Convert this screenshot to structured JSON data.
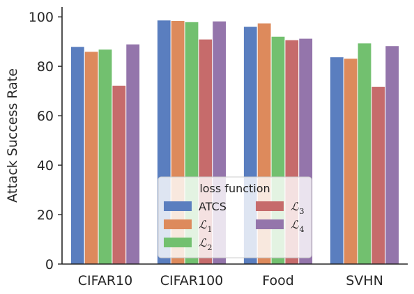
{
  "chart_data": {
    "type": "bar",
    "title": "",
    "xlabel": "",
    "ylabel": "Attack Success Rate",
    "ylim": [
      0,
      104
    ],
    "yticks": [
      0,
      20,
      40,
      60,
      80,
      100
    ],
    "categories": [
      "CIFAR10",
      "CIFAR100",
      "Food",
      "SVHN"
    ],
    "series": [
      {
        "name": "ATCS",
        "math_base": "",
        "math_sub": "",
        "color": "#5a7ebf",
        "values": [
          88.0,
          98.7,
          96.1,
          83.8
        ]
      },
      {
        "name": "ℒ_1",
        "math_base": "ℒ",
        "math_sub": "1",
        "color": "#dd8a5c",
        "values": [
          86.0,
          98.5,
          97.5,
          83.2
        ]
      },
      {
        "name": "ℒ_2",
        "math_base": "ℒ",
        "math_sub": "2",
        "color": "#72c06f",
        "values": [
          86.9,
          98.0,
          92.1,
          89.4
        ]
      },
      {
        "name": "ℒ_3",
        "math_base": "ℒ",
        "math_sub": "3",
        "color": "#c66b6b",
        "values": [
          72.3,
          91.0,
          90.7,
          71.8
        ]
      },
      {
        "name": "ℒ_4",
        "math_base": "ℒ",
        "math_sub": "4",
        "color": "#9475ab",
        "values": [
          89.0,
          98.3,
          91.3,
          88.3
        ]
      }
    ],
    "legend": {
      "title": "loss function",
      "placement": "lower center",
      "columns": 2
    },
    "grid": false
  }
}
